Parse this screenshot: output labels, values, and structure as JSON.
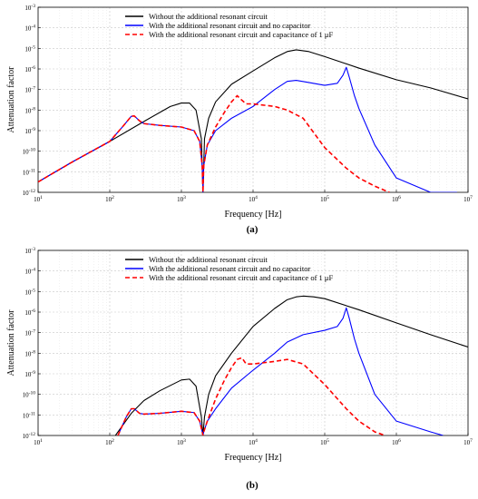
{
  "chart_data": [
    {
      "type": "line",
      "panel_label": "(a)",
      "xlabel": "Frequency [Hz]",
      "ylabel": "Attenuation factor",
      "xscale": "log",
      "yscale": "log",
      "xlim": [
        10,
        10000000
      ],
      "ylim": [
        1e-12,
        0.001
      ],
      "x_ticks": [
        "10^1",
        "10^2",
        "10^3",
        "10^4",
        "10^5",
        "10^6",
        "10^7"
      ],
      "y_ticks": [
        "10^-12",
        "10^-11",
        "10^-10",
        "10^-9",
        "10^-8",
        "10^-7",
        "10^-6",
        "10^-5",
        "10^-4",
        "10^-3"
      ],
      "grid": true,
      "legend_position": "top-left",
      "series": [
        {
          "name": "Without the additional resonant circuit",
          "color": "#000000",
          "style": "solid",
          "x": [
            10,
            30,
            100,
            300,
            700,
            1000,
            1300,
            1600,
            1900,
            2000,
            2100,
            2400,
            3000,
            5000,
            10000,
            20000,
            30000,
            40000,
            60000,
            100000,
            300000,
            1000000,
            3000000,
            10000000
          ],
          "y": [
            3.2e-12,
            3e-11,
            3e-10,
            2.8e-09,
            1.5e-08,
            2.2e-08,
            2.2e-08,
            1e-08,
            4e-10,
            1e-12,
            4e-10,
            4e-09,
            2.5e-08,
            1.8e-07,
            8e-07,
            3.5e-06,
            7e-06,
            8.5e-06,
            7e-06,
            4e-06,
            1.1e-06,
            3e-07,
            1.2e-07,
            3.5e-08
          ]
        },
        {
          "name": "With the additional resonant circuit and no capacitor",
          "color": "#0000ff",
          "style": "solid",
          "x": [
            10,
            30,
            100,
            150,
            200,
            220,
            260,
            300,
            500,
            1000,
            1500,
            1800,
            1950,
            2000,
            2050,
            2300,
            3000,
            5000,
            10000,
            20000,
            30000,
            40000,
            60000,
            100000,
            150000,
            180000,
            200000,
            220000,
            260000,
            300000,
            500000,
            1000000,
            3000000,
            7000000
          ],
          "y": [
            3.2e-12,
            3e-11,
            3e-10,
            1.5e-09,
            5e-09,
            5.2e-09,
            3e-09,
            2.2e-09,
            1.8e-09,
            1.5e-09,
            1e-09,
            3e-10,
            2e-11,
            1e-12,
            2e-11,
            2e-10,
            1e-09,
            4e-09,
            1.5e-08,
            1e-07,
            2.5e-07,
            2.8e-07,
            2.2e-07,
            1.6e-07,
            2e-07,
            5e-07,
            1.2e-06,
            4e-07,
            5e-08,
            1.2e-08,
            2e-10,
            5e-12,
            1e-12,
            1e-12
          ]
        },
        {
          "name": "With the additional resonant circuit and capacitance of 1 μF",
          "color": "#ff0000",
          "style": "dashed",
          "x": [
            10,
            30,
            100,
            150,
            200,
            220,
            260,
            300,
            500,
            1000,
            1500,
            1800,
            1950,
            2000,
            2050,
            2300,
            3000,
            4000,
            5000,
            6000,
            7000,
            8000,
            10000,
            20000,
            30000,
            50000,
            100000,
            200000,
            300000,
            500000,
            800000
          ],
          "y": [
            3.2e-12,
            3e-11,
            3e-10,
            1.5e-09,
            5e-09,
            5.2e-09,
            3e-09,
            2.2e-09,
            1.8e-09,
            1.5e-09,
            1e-09,
            3e-10,
            2e-11,
            1e-12,
            2e-11,
            2e-10,
            1.5e-09,
            8e-09,
            2.5e-08,
            5e-08,
            3e-08,
            2e-08,
            2e-08,
            1.5e-08,
            1e-08,
            4e-09,
            1.5e-10,
            1.5e-11,
            5e-12,
            2e-12,
            1e-12
          ]
        }
      ]
    },
    {
      "type": "line",
      "panel_label": "(b)",
      "xlabel": "Frequency [Hz]",
      "ylabel": "Attenuation factor",
      "xscale": "log",
      "yscale": "log",
      "xlim": [
        10,
        10000000
      ],
      "ylim": [
        1e-12,
        0.001
      ],
      "x_ticks": [
        "10^1",
        "10^2",
        "10^3",
        "10^4",
        "10^5",
        "10^6",
        "10^7"
      ],
      "y_ticks": [
        "10^-12",
        "10^-11",
        "10^-10",
        "10^-9",
        "10^-8",
        "10^-7",
        "10^-6",
        "10^-5",
        "10^-4",
        "10^-3"
      ],
      "grid": true,
      "legend_position": "top-left",
      "series": [
        {
          "name": "Without the additional resonant circuit",
          "color": "#000000",
          "style": "solid",
          "x": [
            120,
            200,
            300,
            500,
            1000,
            1300,
            1600,
            1900,
            2000,
            2100,
            2400,
            3000,
            5000,
            10000,
            20000,
            30000,
            40000,
            50000,
            70000,
            100000,
            300000,
            1000000,
            3000000,
            10000000
          ],
          "y": [
            1e-12,
            1.2e-11,
            5e-11,
            1.5e-10,
            5e-10,
            5.5e-10,
            2.5e-10,
            8e-12,
            1e-12,
            8e-12,
            1e-10,
            8e-10,
            1e-08,
            2e-07,
            1.5e-06,
            4e-06,
            5.5e-06,
            6e-06,
            5.5e-06,
            4.5e-06,
            1.3e-06,
            3e-07,
            8e-08,
            2e-08
          ]
        },
        {
          "name": "With the additional resonant circuit and no capacitor",
          "color": "#0000ff",
          "style": "solid",
          "x": [
            130,
            170,
            200,
            220,
            260,
            300,
            500,
            1000,
            1500,
            1800,
            1950,
            2000,
            2050,
            2300,
            3000,
            5000,
            10000,
            20000,
            30000,
            50000,
            100000,
            150000,
            180000,
            200000,
            220000,
            260000,
            300000,
            500000,
            1000000,
            3000000,
            4500000
          ],
          "y": [
            1e-12,
            8e-12,
            2e-11,
            2e-11,
            1.2e-11,
            1.1e-11,
            1.2e-11,
            1.5e-11,
            1.3e-11,
            5e-12,
            1.5e-12,
            1e-12,
            1.5e-12,
            5e-12,
            2e-11,
            2e-10,
            1.5e-09,
            1e-08,
            3.5e-08,
            8e-08,
            1.3e-07,
            2e-07,
            5e-07,
            1.6e-06,
            5e-07,
            5e-08,
            1e-08,
            1e-10,
            5e-12,
            1.5e-12,
            1e-12
          ]
        },
        {
          "name": "With the additional resonant circuit and capacitance of 1 μF",
          "color": "#ff0000",
          "style": "dashed",
          "x": [
            130,
            170,
            200,
            220,
            260,
            300,
            500,
            1000,
            1500,
            1800,
            1950,
            2000,
            2050,
            2300,
            3000,
            4000,
            5000,
            6000,
            7000,
            8000,
            10000,
            20000,
            30000,
            50000,
            100000,
            200000,
            300000,
            500000,
            700000
          ],
          "y": [
            1e-12,
            8e-12,
            2e-11,
            2e-11,
            1.2e-11,
            1.1e-11,
            1.2e-11,
            1.5e-11,
            1.3e-11,
            5e-12,
            1.5e-12,
            1e-12,
            1.5e-12,
            5e-12,
            6e-11,
            5e-10,
            2e-09,
            5e-09,
            6e-09,
            3e-09,
            3e-09,
            4e-09,
            5e-09,
            3e-09,
            3e-10,
            2e-11,
            5e-12,
            1.5e-12,
            1e-12
          ]
        }
      ]
    }
  ]
}
